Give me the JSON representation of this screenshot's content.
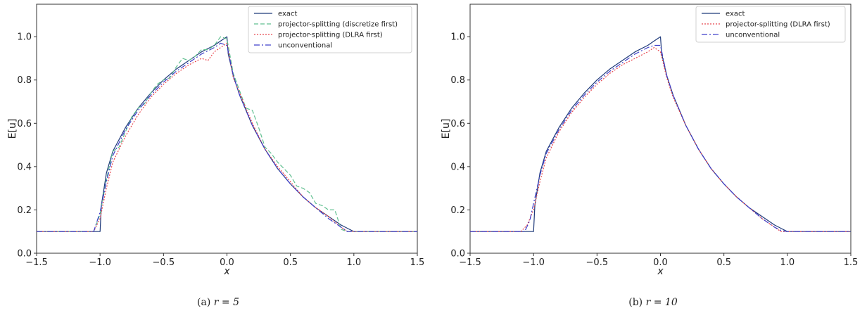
{
  "chart_data": [
    {
      "type": "line",
      "caption": {
        "prefix": "(a) ",
        "math": "r = 5"
      },
      "xlabel": "x",
      "ylabel": "E[u]",
      "xlim": [
        -1.5,
        1.5
      ],
      "ylim": [
        0.0,
        1.15
      ],
      "xticks": [
        -1.5,
        -1.0,
        -0.5,
        0.0,
        0.5,
        1.0,
        1.5
      ],
      "xtick_labels": [
        "−1.5",
        "−1.0",
        "−0.5",
        "0.0",
        "0.5",
        "1.0",
        "1.5"
      ],
      "yticks": [
        0.0,
        0.2,
        0.4,
        0.6,
        0.8,
        1.0
      ],
      "ytick_labels": [
        "0.0",
        "0.2",
        "0.4",
        "0.6",
        "0.8",
        "1.0"
      ],
      "grid": false,
      "legend_position": "top-right",
      "series": [
        {
          "name": "exact",
          "color": "#1f3a7a",
          "dash": "solid",
          "x": [
            -1.5,
            -1.0,
            -0.99,
            -0.95,
            -0.9,
            -0.8,
            -0.7,
            -0.6,
            -0.5,
            -0.4,
            -0.3,
            -0.2,
            -0.1,
            -0.05,
            0.0,
            0.01,
            0.05,
            0.1,
            0.2,
            0.3,
            0.4,
            0.5,
            0.6,
            0.7,
            0.8,
            0.9,
            0.95,
            0.99,
            1.0,
            1.5
          ],
          "y": [
            0.1,
            0.1,
            0.22,
            0.37,
            0.47,
            0.58,
            0.67,
            0.74,
            0.8,
            0.85,
            0.89,
            0.93,
            0.96,
            0.98,
            1.0,
            0.92,
            0.82,
            0.73,
            0.59,
            0.48,
            0.39,
            0.32,
            0.26,
            0.21,
            0.17,
            0.13,
            0.115,
            0.103,
            0.1,
            0.1
          ]
        },
        {
          "name": "projector-splitting (discretize first)",
          "color": "#5fbf8f",
          "dash": "6,3",
          "x": [
            -1.5,
            -1.05,
            -1.0,
            -0.95,
            -0.9,
            -0.85,
            -0.8,
            -0.75,
            -0.7,
            -0.65,
            -0.6,
            -0.55,
            -0.5,
            -0.45,
            -0.4,
            -0.35,
            -0.3,
            -0.25,
            -0.2,
            -0.15,
            -0.1,
            -0.05,
            0.0,
            0.05,
            0.1,
            0.15,
            0.2,
            0.25,
            0.3,
            0.35,
            0.4,
            0.45,
            0.5,
            0.55,
            0.6,
            0.65,
            0.7,
            0.75,
            0.8,
            0.85,
            0.9,
            0.95,
            1.0,
            1.5
          ],
          "y": [
            0.1,
            0.1,
            0.18,
            0.34,
            0.47,
            0.49,
            0.56,
            0.63,
            0.67,
            0.69,
            0.74,
            0.78,
            0.8,
            0.81,
            0.86,
            0.9,
            0.89,
            0.91,
            0.94,
            0.94,
            0.96,
            1.0,
            0.99,
            0.83,
            0.75,
            0.67,
            0.66,
            0.58,
            0.49,
            0.46,
            0.42,
            0.39,
            0.36,
            0.31,
            0.3,
            0.28,
            0.23,
            0.22,
            0.2,
            0.2,
            0.11,
            0.1,
            0.1,
            0.1
          ]
        },
        {
          "name": "projector-splitting (DLRA first)",
          "color": "#e8474f",
          "dash": "2,2",
          "x": [
            -1.5,
            -1.05,
            -1.0,
            -0.95,
            -0.9,
            -0.8,
            -0.7,
            -0.6,
            -0.5,
            -0.4,
            -0.3,
            -0.2,
            -0.15,
            -0.1,
            -0.05,
            0.0,
            0.05,
            0.1,
            0.2,
            0.3,
            0.4,
            0.5,
            0.6,
            0.7,
            0.8,
            0.9,
            0.95,
            1.0,
            1.5
          ],
          "y": [
            0.1,
            0.1,
            0.16,
            0.3,
            0.42,
            0.54,
            0.64,
            0.72,
            0.78,
            0.83,
            0.87,
            0.9,
            0.89,
            0.93,
            0.95,
            0.97,
            0.81,
            0.74,
            0.6,
            0.48,
            0.4,
            0.33,
            0.26,
            0.21,
            0.17,
            0.12,
            0.1,
            0.1,
            0.1
          ]
        },
        {
          "name": "unconventional",
          "color": "#3d3ec9",
          "dash": "8,3,2,3",
          "x": [
            -1.5,
            -1.05,
            -1.0,
            -0.95,
            -0.9,
            -0.8,
            -0.7,
            -0.6,
            -0.5,
            -0.4,
            -0.3,
            -0.2,
            -0.1,
            -0.05,
            0.0,
            0.05,
            0.1,
            0.2,
            0.3,
            0.4,
            0.5,
            0.6,
            0.7,
            0.8,
            0.9,
            0.95,
            1.0,
            1.5
          ],
          "y": [
            0.1,
            0.1,
            0.19,
            0.33,
            0.45,
            0.57,
            0.66,
            0.73,
            0.79,
            0.84,
            0.88,
            0.92,
            0.95,
            0.97,
            0.96,
            0.82,
            0.73,
            0.59,
            0.48,
            0.39,
            0.32,
            0.26,
            0.21,
            0.16,
            0.12,
            0.1,
            0.1,
            0.1
          ]
        }
      ]
    },
    {
      "type": "line",
      "caption": {
        "prefix": "(b) ",
        "math": "r = 10"
      },
      "xlabel": "x",
      "ylabel": "E[u]",
      "xlim": [
        -1.5,
        1.5
      ],
      "ylim": [
        0.0,
        1.15
      ],
      "xticks": [
        -1.5,
        -1.0,
        -0.5,
        0.0,
        0.5,
        1.0,
        1.5
      ],
      "xtick_labels": [
        "−1.5",
        "−1.0",
        "−0.5",
        "0.0",
        "0.5",
        "1.0",
        "1.5"
      ],
      "yticks": [
        0.0,
        0.2,
        0.4,
        0.6,
        0.8,
        1.0
      ],
      "ytick_labels": [
        "0.0",
        "0.2",
        "0.4",
        "0.6",
        "0.8",
        "1.0"
      ],
      "grid": false,
      "legend_position": "top-right",
      "series": [
        {
          "name": "exact",
          "color": "#1f3a7a",
          "dash": "solid",
          "x": [
            -1.5,
            -1.0,
            -0.99,
            -0.95,
            -0.9,
            -0.8,
            -0.7,
            -0.6,
            -0.5,
            -0.4,
            -0.3,
            -0.2,
            -0.1,
            -0.05,
            0.0,
            0.01,
            0.05,
            0.1,
            0.2,
            0.3,
            0.4,
            0.5,
            0.6,
            0.7,
            0.8,
            0.9,
            0.95,
            0.99,
            1.0,
            1.5
          ],
          "y": [
            0.1,
            0.1,
            0.22,
            0.37,
            0.47,
            0.58,
            0.67,
            0.74,
            0.8,
            0.85,
            0.89,
            0.93,
            0.96,
            0.98,
            1.0,
            0.92,
            0.82,
            0.73,
            0.59,
            0.48,
            0.39,
            0.32,
            0.26,
            0.21,
            0.17,
            0.13,
            0.115,
            0.103,
            0.1,
            0.1
          ]
        },
        {
          "name": "projector-splitting (DLRA first)",
          "color": "#e8474f",
          "dash": "2,2",
          "x": [
            -1.5,
            -1.1,
            -1.05,
            -1.0,
            -0.95,
            -0.9,
            -0.8,
            -0.7,
            -0.6,
            -0.5,
            -0.4,
            -0.3,
            -0.2,
            -0.1,
            -0.05,
            0.0,
            0.05,
            0.1,
            0.2,
            0.3,
            0.4,
            0.5,
            0.6,
            0.7,
            0.8,
            0.9,
            0.95,
            1.0,
            1.5
          ],
          "y": [
            0.1,
            0.1,
            0.13,
            0.2,
            0.33,
            0.44,
            0.56,
            0.65,
            0.72,
            0.78,
            0.83,
            0.87,
            0.9,
            0.93,
            0.95,
            0.93,
            0.81,
            0.72,
            0.59,
            0.48,
            0.39,
            0.32,
            0.26,
            0.21,
            0.16,
            0.12,
            0.1,
            0.1,
            0.1
          ]
        },
        {
          "name": "unconventional",
          "color": "#3d3ec9",
          "dash": "8,3,2,3",
          "x": [
            -1.5,
            -1.07,
            -1.03,
            -1.0,
            -0.95,
            -0.9,
            -0.8,
            -0.7,
            -0.6,
            -0.5,
            -0.4,
            -0.3,
            -0.2,
            -0.1,
            -0.05,
            0.0,
            0.05,
            0.1,
            0.2,
            0.3,
            0.4,
            0.5,
            0.6,
            0.7,
            0.8,
            0.9,
            0.95,
            1.0,
            1.5
          ],
          "y": [
            0.1,
            0.1,
            0.15,
            0.23,
            0.36,
            0.46,
            0.57,
            0.66,
            0.73,
            0.79,
            0.84,
            0.88,
            0.92,
            0.95,
            0.96,
            0.96,
            0.82,
            0.73,
            0.59,
            0.48,
            0.39,
            0.32,
            0.26,
            0.21,
            0.16,
            0.12,
            0.105,
            0.1,
            0.1
          ]
        }
      ]
    }
  ]
}
